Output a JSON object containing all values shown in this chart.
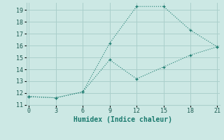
{
  "xlabel": "Humidex (Indice chaleur)",
  "bg_color": "#cce8e4",
  "grid_color": "#aacfcb",
  "line_color": "#1a7a6e",
  "line1_x": [
    0,
    3,
    6,
    9,
    12,
    15,
    18,
    21
  ],
  "line1_y": [
    11.7,
    11.6,
    12.1,
    16.2,
    19.3,
    19.3,
    17.3,
    15.9
  ],
  "line2_x": [
    0,
    3,
    6,
    9,
    12,
    15,
    18,
    21
  ],
  "line2_y": [
    11.7,
    11.6,
    12.1,
    14.8,
    13.2,
    14.2,
    15.2,
    15.9
  ],
  "xlim": [
    -0.3,
    21.3
  ],
  "ylim": [
    11,
    19.6
  ],
  "xticks": [
    0,
    3,
    6,
    9,
    12,
    15,
    18,
    21
  ],
  "yticks": [
    11,
    12,
    13,
    14,
    15,
    16,
    17,
    18,
    19
  ],
  "tick_fontsize": 6,
  "xlabel_fontsize": 7
}
